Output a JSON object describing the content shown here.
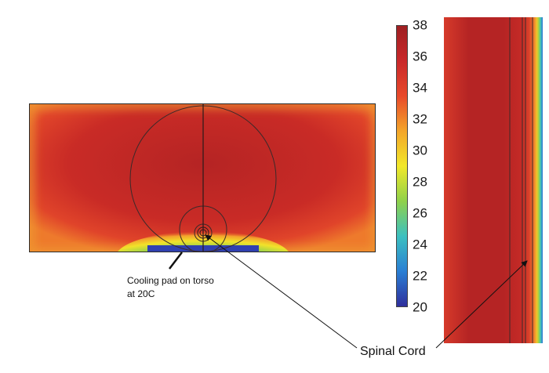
{
  "colorbar": {
    "ticks": [
      "38",
      "36",
      "34",
      "32",
      "30",
      "28",
      "26",
      "24",
      "22",
      "20"
    ],
    "min": 20,
    "max": 38,
    "colors": [
      "#2f2f9c",
      "#2a7fd4",
      "#3cc0c0",
      "#8fd14a",
      "#f2e82a",
      "#f3a52a",
      "#e8492a",
      "#c9282a",
      "#9e1f22"
    ]
  },
  "annotations": {
    "cooling_pad": "Cooling pad on torso at 20C",
    "spinal_cord": "Spinal Cord"
  },
  "palette": {
    "hot": "#b52424",
    "warm": "#dd3a2a",
    "edge_orange": "#f0a030",
    "cool_yellow": "#f2e82a",
    "cool_cyan": "#3cc0c0",
    "cold_blue": "#3040b0",
    "outline": "#2b2b2b"
  }
}
